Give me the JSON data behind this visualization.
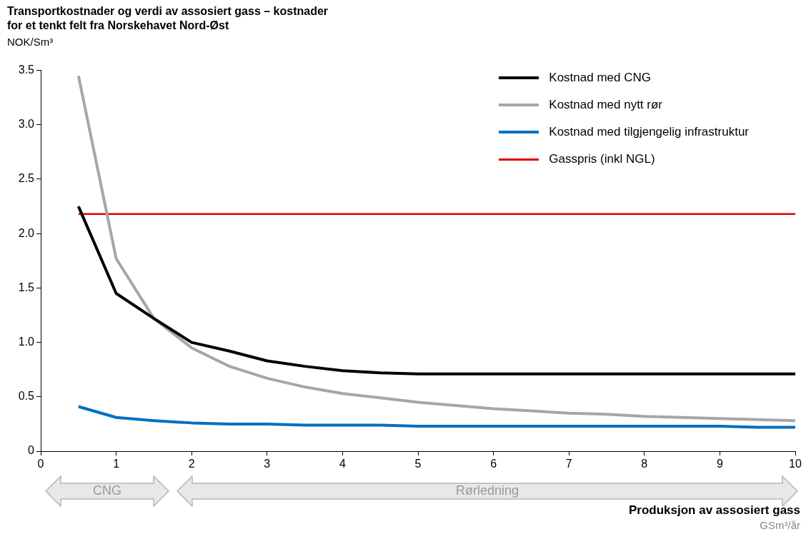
{
  "chart_data": {
    "type": "line",
    "title": "Transportkostnader og verdi av assosiert gass – kostnader for et tenkt felt fra Norskehavet Nord-Øst",
    "ylabel": "NOK/Sm³",
    "xlabel": "Produksjon av assosiert gass",
    "annotations": [
      "CNG",
      "Rørledning",
      "GSm³/år"
    ],
    "x": [
      0.5,
      1,
      1.5,
      2,
      2.5,
      3,
      3.5,
      4,
      4.5,
      5,
      5.5,
      6,
      6.5,
      7,
      7.5,
      8,
      8.5,
      9,
      9.5,
      10
    ],
    "series": [
      {
        "name": "Kostnad med CNG",
        "color": "#000000",
        "values": [
          2.25,
          1.45,
          1.22,
          1.0,
          0.92,
          0.83,
          0.78,
          0.74,
          0.72,
          0.71,
          0.71,
          0.71,
          0.71,
          0.71,
          0.71,
          0.71,
          0.71,
          0.71,
          0.71,
          0.71
        ]
      },
      {
        "name": "Kostnad med nytt rør",
        "color": "#a6a6a6",
        "values": [
          3.45,
          1.77,
          1.22,
          0.95,
          0.78,
          0.67,
          0.59,
          0.53,
          0.49,
          0.45,
          0.42,
          0.39,
          0.37,
          0.35,
          0.34,
          0.32,
          0.31,
          0.3,
          0.29,
          0.28
        ]
      },
      {
        "name": "Kostnad med tilgjengelig infrastruktur",
        "color": "#0070c0",
        "values": [
          0.41,
          0.31,
          0.28,
          0.26,
          0.25,
          0.25,
          0.24,
          0.24,
          0.24,
          0.23,
          0.23,
          0.23,
          0.23,
          0.23,
          0.23,
          0.23,
          0.23,
          0.23,
          0.22,
          0.22
        ]
      },
      {
        "name": "Gasspris (inkl NGL)",
        "color": "#e00000",
        "values": [
          2.18,
          2.18,
          2.18,
          2.18,
          2.18,
          2.18,
          2.18,
          2.18,
          2.18,
          2.18,
          2.18,
          2.18,
          2.18,
          2.18,
          2.18,
          2.18,
          2.18,
          2.18,
          2.18,
          2.18
        ]
      }
    ],
    "xlim": [
      0,
      10
    ],
    "xticks": [
      0,
      1,
      2,
      3,
      4,
      5,
      6,
      7,
      8,
      9,
      10
    ],
    "ylim": [
      0,
      3.5
    ],
    "yticks": [
      0,
      0.5,
      {
        "value": 1,
        "label": "1.0"
      },
      1.5,
      {
        "value": 2,
        "label": "2.0"
      },
      2.5,
      {
        "value": 3,
        "label": "3.0"
      },
      3.5
    ],
    "grid": false,
    "legend": "top right",
    "marker": "none"
  }
}
